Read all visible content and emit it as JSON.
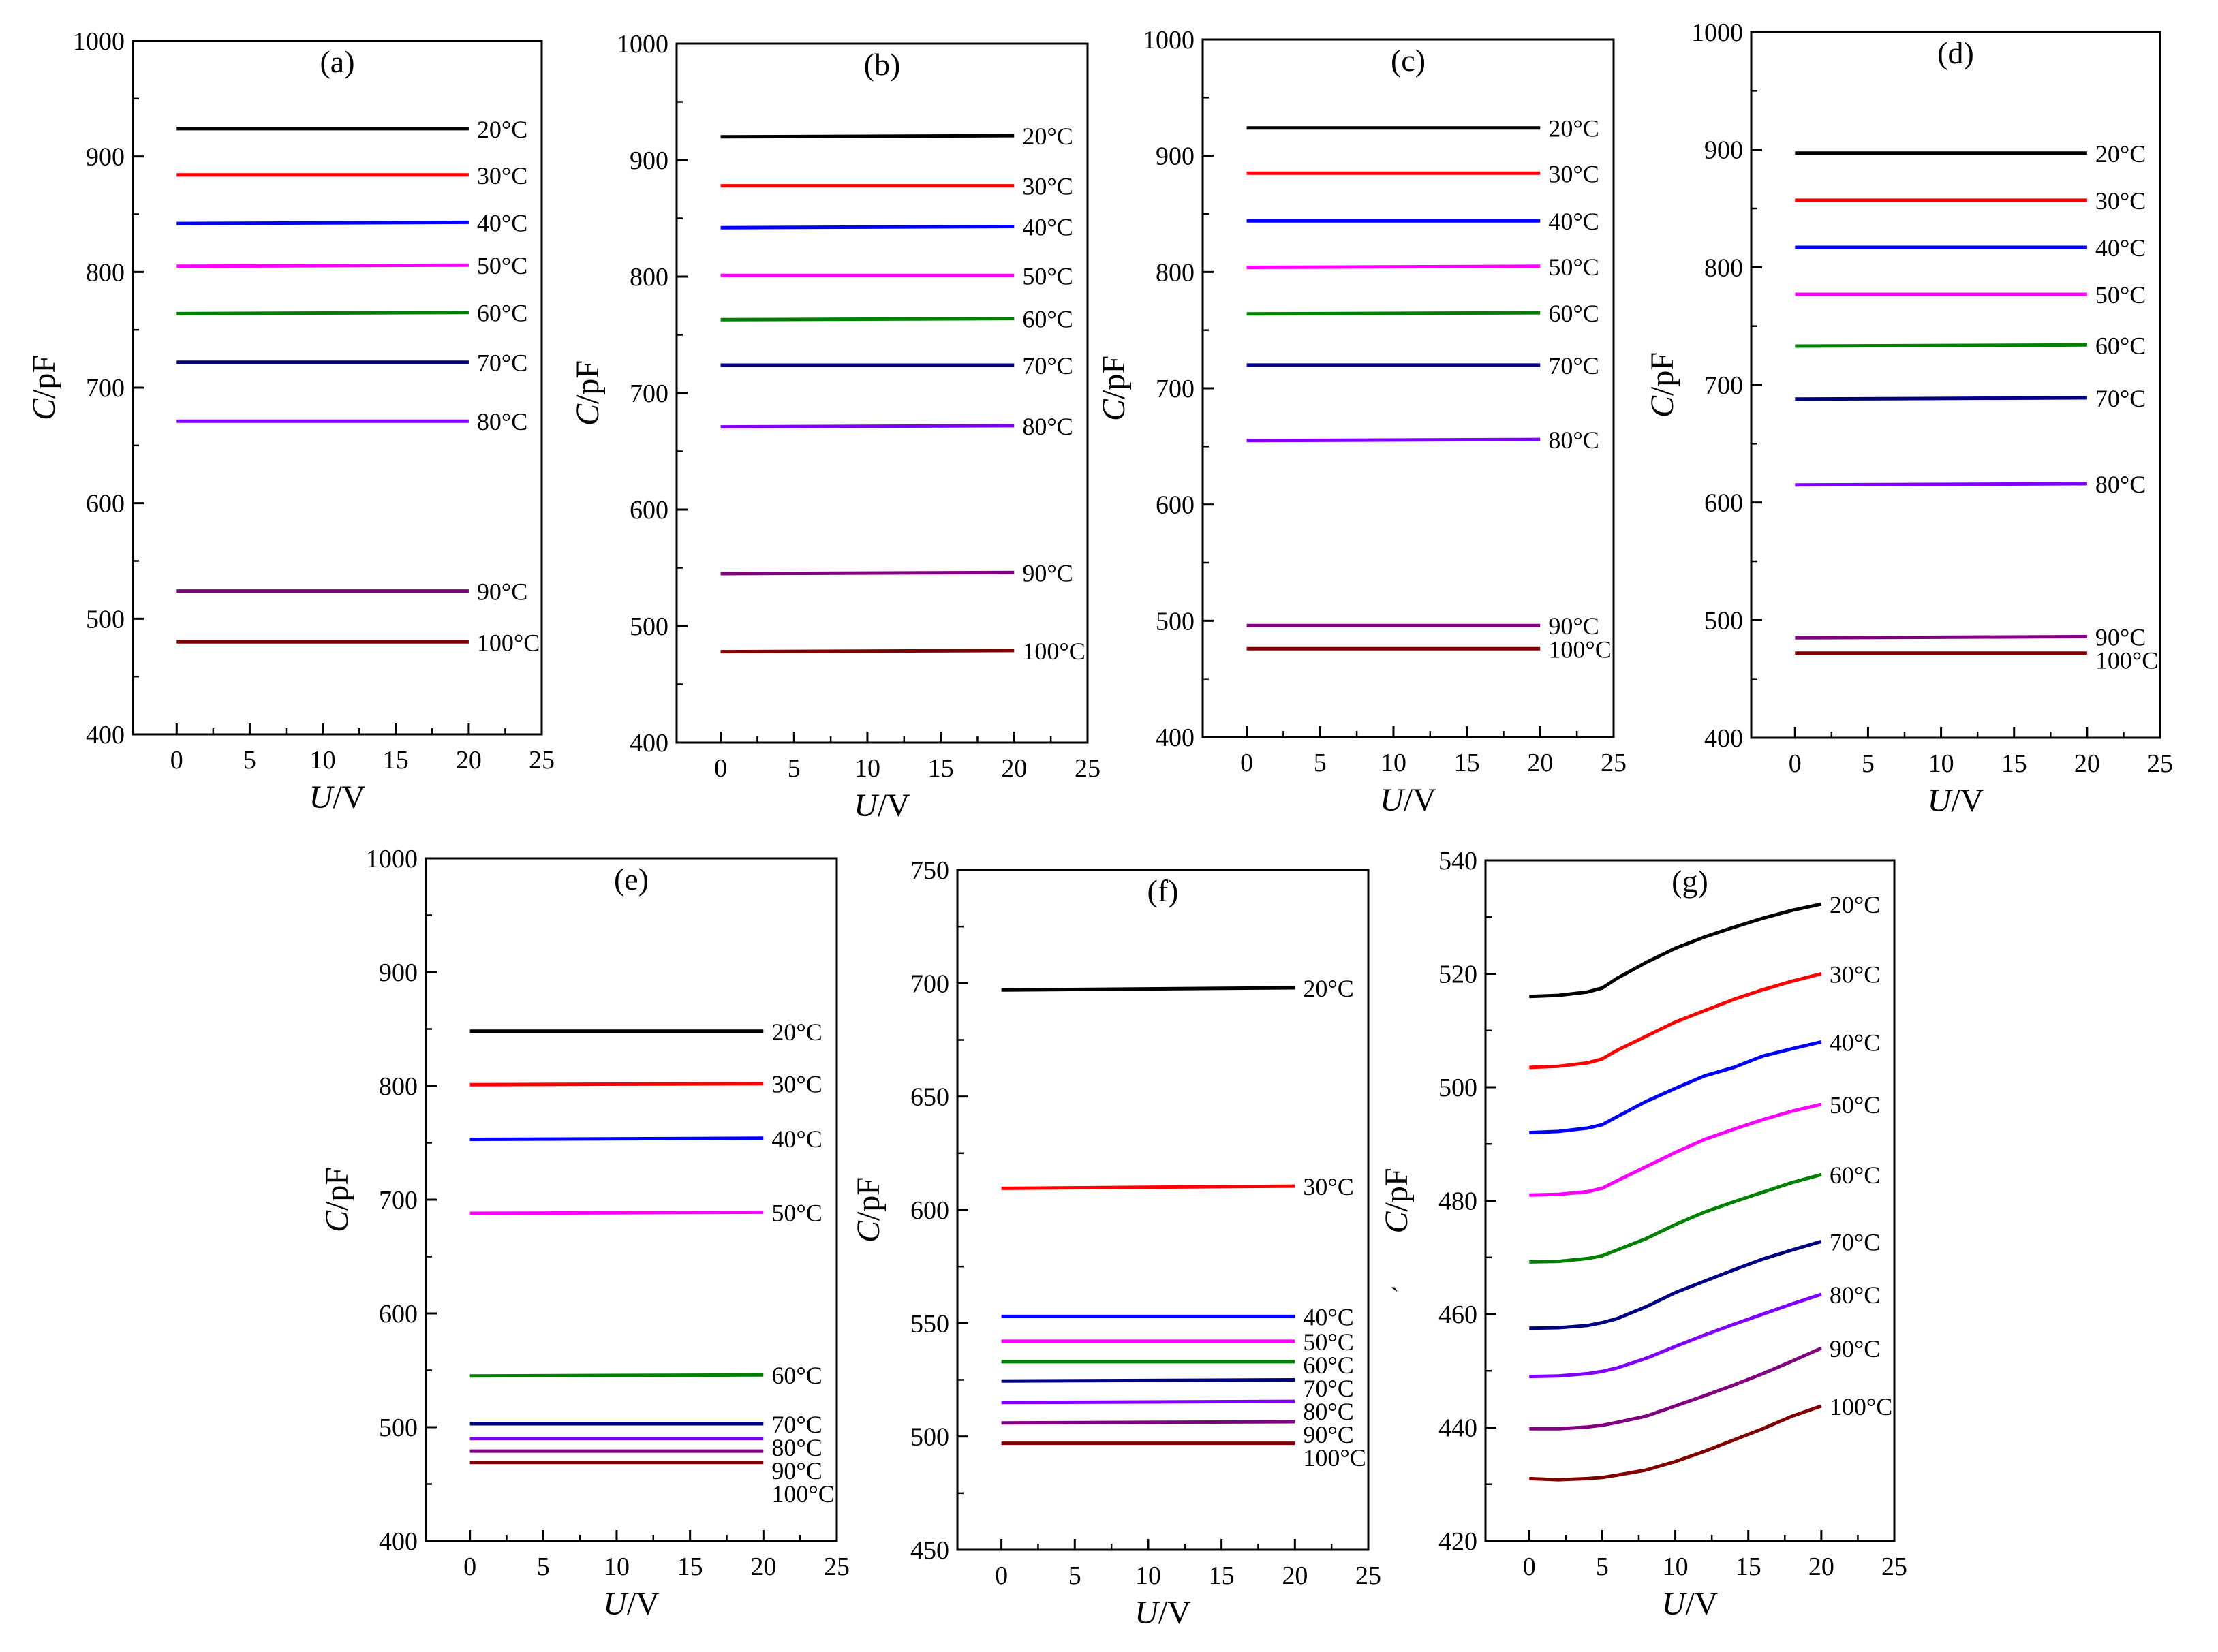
{
  "chart_data": [
    {
      "type": "line",
      "panel_label": "(a)",
      "xlabel_italic": "U",
      "xlabel_unit": "/V",
      "ylabel_italic": "C",
      "ylabel_unit": "/pF",
      "xlim": [
        -3,
        25
      ],
      "ylim": [
        400,
        1000
      ],
      "xticks": [
        0,
        5,
        10,
        15,
        20,
        25
      ],
      "yticks": [
        400,
        500,
        600,
        700,
        800,
        900,
        1000
      ],
      "series": [
        {
          "name": "20°C",
          "color": "#000000",
          "x": [
            0,
            20
          ],
          "y": [
            924,
            924
          ]
        },
        {
          "name": "30°C",
          "color": "#ff0000",
          "x": [
            0,
            20
          ],
          "y": [
            884,
            884
          ]
        },
        {
          "name": "40°C",
          "color": "#0000ff",
          "x": [
            0,
            20
          ],
          "y": [
            842,
            843
          ]
        },
        {
          "name": "50°C",
          "color": "#ff00ff",
          "x": [
            0,
            20
          ],
          "y": [
            805,
            806
          ]
        },
        {
          "name": "60°C",
          "color": "#008000",
          "x": [
            0,
            20
          ],
          "y": [
            764,
            765
          ]
        },
        {
          "name": "70°C",
          "color": "#000080",
          "x": [
            0,
            20
          ],
          "y": [
            722,
            722
          ]
        },
        {
          "name": "80°C",
          "color": "#8000ff",
          "x": [
            0,
            20
          ],
          "y": [
            671,
            671
          ]
        },
        {
          "name": "90°C",
          "color": "#800080",
          "x": [
            0,
            20
          ],
          "y": [
            524,
            524
          ]
        },
        {
          "name": "100°C",
          "color": "#800000",
          "x": [
            0,
            20
          ],
          "y": [
            480,
            480
          ]
        }
      ]
    },
    {
      "type": "line",
      "panel_label": "(b)",
      "xlabel_italic": "U",
      "xlabel_unit": "/V",
      "ylabel_italic": "C",
      "ylabel_unit": "/pF",
      "xlim": [
        -3,
        25
      ],
      "ylim": [
        400,
        1000
      ],
      "xticks": [
        0,
        5,
        10,
        15,
        20,
        25
      ],
      "yticks": [
        400,
        500,
        600,
        700,
        800,
        900,
        1000
      ],
      "series": [
        {
          "name": "20°C",
          "color": "#000000",
          "x": [
            0,
            20
          ],
          "y": [
            920,
            921
          ]
        },
        {
          "name": "30°C",
          "color": "#ff0000",
          "x": [
            0,
            20
          ],
          "y": [
            878,
            878
          ]
        },
        {
          "name": "40°C",
          "color": "#0000ff",
          "x": [
            0,
            20
          ],
          "y": [
            842,
            843
          ]
        },
        {
          "name": "50°C",
          "color": "#ff00ff",
          "x": [
            0,
            20
          ],
          "y": [
            801,
            801
          ]
        },
        {
          "name": "60°C",
          "color": "#008000",
          "x": [
            0,
            20
          ],
          "y": [
            763,
            764
          ]
        },
        {
          "name": "70°C",
          "color": "#000080",
          "x": [
            0,
            20
          ],
          "y": [
            724,
            724
          ]
        },
        {
          "name": "80°C",
          "color": "#8000ff",
          "x": [
            0,
            20
          ],
          "y": [
            671,
            672
          ]
        },
        {
          "name": "90°C",
          "color": "#800080",
          "x": [
            0,
            20
          ],
          "y": [
            545,
            546
          ]
        },
        {
          "name": "100°C",
          "color": "#800000",
          "x": [
            0,
            20
          ],
          "y": [
            478,
            479
          ]
        }
      ]
    },
    {
      "type": "line",
      "panel_label": "(c)",
      "xlabel_italic": "U",
      "xlabel_unit": "/V",
      "ylabel_italic": "C",
      "ylabel_unit": "/pF",
      "xlim": [
        -3,
        25
      ],
      "ylim": [
        400,
        1000
      ],
      "xticks": [
        0,
        5,
        10,
        15,
        20,
        25
      ],
      "yticks": [
        400,
        500,
        600,
        700,
        800,
        900,
        1000
      ],
      "series": [
        {
          "name": "20°C",
          "color": "#000000",
          "x": [
            0,
            20
          ],
          "y": [
            924,
            924
          ]
        },
        {
          "name": "30°C",
          "color": "#ff0000",
          "x": [
            0,
            20
          ],
          "y": [
            885,
            885
          ]
        },
        {
          "name": "40°C",
          "color": "#0000ff",
          "x": [
            0,
            20
          ],
          "y": [
            844,
            844
          ]
        },
        {
          "name": "50°C",
          "color": "#ff00ff",
          "x": [
            0,
            20
          ],
          "y": [
            804,
            805
          ]
        },
        {
          "name": "60°C",
          "color": "#008000",
          "x": [
            0,
            20
          ],
          "y": [
            764,
            765
          ]
        },
        {
          "name": "70°C",
          "color": "#000080",
          "x": [
            0,
            20
          ],
          "y": [
            720,
            720
          ]
        },
        {
          "name": "80°C",
          "color": "#8000ff",
          "x": [
            0,
            20
          ],
          "y": [
            655,
            656
          ]
        },
        {
          "name": "90°C",
          "color": "#800080",
          "x": [
            0,
            20
          ],
          "y": [
            496,
            496
          ]
        },
        {
          "name": "100°C",
          "color": "#800000",
          "x": [
            0,
            20
          ],
          "y": [
            476,
            476
          ]
        }
      ]
    },
    {
      "type": "line",
      "panel_label": "(d)",
      "xlabel_italic": "U",
      "xlabel_unit": "/V",
      "ylabel_italic": "C",
      "ylabel_unit": "/pF",
      "xlim": [
        -3,
        25
      ],
      "ylim": [
        400,
        1000
      ],
      "xticks": [
        0,
        5,
        10,
        15,
        20,
        25
      ],
      "yticks": [
        400,
        500,
        600,
        700,
        800,
        900,
        1000
      ],
      "series": [
        {
          "name": "20°C",
          "color": "#000000",
          "x": [
            0,
            20
          ],
          "y": [
            897,
            897
          ]
        },
        {
          "name": "30°C",
          "color": "#ff0000",
          "x": [
            0,
            20
          ],
          "y": [
            857,
            857
          ]
        },
        {
          "name": "40°C",
          "color": "#0000ff",
          "x": [
            0,
            20
          ],
          "y": [
            817,
            817
          ]
        },
        {
          "name": "50°C",
          "color": "#ff00ff",
          "x": [
            0,
            20
          ],
          "y": [
            777,
            777
          ]
        },
        {
          "name": "60°C",
          "color": "#008000",
          "x": [
            0,
            20
          ],
          "y": [
            733,
            734
          ]
        },
        {
          "name": "70°C",
          "color": "#000080",
          "x": [
            0,
            20
          ],
          "y": [
            688,
            689
          ]
        },
        {
          "name": "80°C",
          "color": "#8000ff",
          "x": [
            0,
            20
          ],
          "y": [
            615,
            616
          ]
        },
        {
          "name": "90°C",
          "color": "#800080",
          "x": [
            0,
            20
          ],
          "y": [
            485,
            486
          ]
        },
        {
          "name": "100°C",
          "color": "#800000",
          "x": [
            0,
            20
          ],
          "y": [
            472,
            472
          ]
        }
      ]
    },
    {
      "type": "line",
      "panel_label": "(e)",
      "xlabel_italic": "U",
      "xlabel_unit": "/V",
      "ylabel_italic": "C",
      "ylabel_unit": "/pF",
      "xlim": [
        -3,
        25
      ],
      "ylim": [
        400,
        1000
      ],
      "xticks": [
        0,
        5,
        10,
        15,
        20,
        25
      ],
      "yticks": [
        400,
        500,
        600,
        700,
        800,
        900,
        1000
      ],
      "series": [
        {
          "name": "20°C",
          "color": "#000000",
          "x": [
            0,
            20
          ],
          "y": [
            848,
            848
          ]
        },
        {
          "name": "30°C",
          "color": "#ff0000",
          "x": [
            0,
            20
          ],
          "y": [
            801,
            802
          ]
        },
        {
          "name": "40°C",
          "color": "#0000ff",
          "x": [
            0,
            20
          ],
          "y": [
            753,
            754
          ]
        },
        {
          "name": "50°C",
          "color": "#ff00ff",
          "x": [
            0,
            20
          ],
          "y": [
            688,
            689
          ]
        },
        {
          "name": "60°C",
          "color": "#008000",
          "x": [
            0,
            20
          ],
          "y": [
            545,
            546
          ]
        },
        {
          "name": "70°C",
          "color": "#000080",
          "x": [
            0,
            20
          ],
          "y": [
            503,
            503
          ]
        },
        {
          "name": "80°C",
          "color": "#8000ff",
          "x": [
            0,
            20
          ],
          "y": [
            490,
            490
          ]
        },
        {
          "name": "90°C",
          "color": "#800080",
          "x": [
            0,
            20
          ],
          "y": [
            479,
            479
          ]
        },
        {
          "name": "100°C",
          "color": "#800000",
          "x": [
            0,
            20
          ],
          "y": [
            469,
            469
          ]
        }
      ]
    },
    {
      "type": "line",
      "panel_label": "(f)",
      "xlabel_italic": "U",
      "xlabel_unit": "/V",
      "ylabel_italic": "C",
      "ylabel_unit": "/pF",
      "xlim": [
        -3,
        25
      ],
      "ylim": [
        450,
        750
      ],
      "xticks": [
        0,
        5,
        10,
        15,
        20,
        25
      ],
      "yticks": [
        450,
        500,
        550,
        600,
        650,
        700,
        750
      ],
      "series": [
        {
          "name": "20°C",
          "color": "#000000",
          "x": [
            0,
            20
          ],
          "y": [
            697,
            698
          ]
        },
        {
          "name": "30°C",
          "color": "#ff0000",
          "x": [
            0,
            20
          ],
          "y": [
            609.5,
            610.5
          ]
        },
        {
          "name": "40°C",
          "color": "#0000ff",
          "x": [
            0,
            20
          ],
          "y": [
            553,
            553
          ]
        },
        {
          "name": "50°C",
          "color": "#ff00ff",
          "x": [
            0,
            20
          ],
          "y": [
            542,
            542
          ]
        },
        {
          "name": "60°C",
          "color": "#008000",
          "x": [
            0,
            20
          ],
          "y": [
            533,
            533
          ]
        },
        {
          "name": "70°C",
          "color": "#000080",
          "x": [
            0,
            20
          ],
          "y": [
            524.5,
            525
          ]
        },
        {
          "name": "80°C",
          "color": "#8000ff",
          "x": [
            0,
            20
          ],
          "y": [
            515,
            515.5
          ]
        },
        {
          "name": "90°C",
          "color": "#800080",
          "x": [
            0,
            20
          ],
          "y": [
            506,
            506.5
          ]
        },
        {
          "name": "100°C",
          "color": "#800000",
          "x": [
            0,
            20
          ],
          "y": [
            497,
            497
          ]
        }
      ]
    },
    {
      "type": "line",
      "panel_label": "(g)",
      "xlabel_italic": "U",
      "xlabel_unit": "/V",
      "ylabel_italic": "C",
      "ylabel_unit": "/pF",
      "ylabel_prefix": "`",
      "xlim": [
        -3,
        25
      ],
      "ylim": [
        420,
        540
      ],
      "xticks": [
        0,
        5,
        10,
        15,
        20,
        25
      ],
      "yticks": [
        420,
        440,
        460,
        480,
        500,
        520,
        540
      ],
      "series": [
        {
          "name": "20°C",
          "color": "#000000",
          "x": [
            0,
            2,
            4,
            5,
            6,
            8,
            10,
            12,
            14,
            16,
            18,
            20
          ],
          "y": [
            516,
            516.2,
            516.8,
            517.5,
            519.2,
            522,
            524.5,
            526.5,
            528.2,
            529.8,
            531.2,
            532.3
          ]
        },
        {
          "name": "30°C",
          "color": "#ff0000",
          "x": [
            0,
            2,
            4,
            5,
            6,
            8,
            10,
            12,
            14,
            16,
            18,
            20
          ],
          "y": [
            503.5,
            503.7,
            504.3,
            505,
            506.5,
            509,
            511.5,
            513.5,
            515.5,
            517.2,
            518.7,
            520
          ]
        },
        {
          "name": "40°C",
          "color": "#0000ff",
          "x": [
            0,
            2,
            4,
            5,
            6,
            8,
            10,
            12,
            14,
            16,
            18,
            20
          ],
          "y": [
            492,
            492.2,
            492.8,
            493.4,
            494.8,
            497.5,
            499.8,
            502,
            503.5,
            505.5,
            506.8,
            508
          ]
        },
        {
          "name": "50°C",
          "color": "#ff00ff",
          "x": [
            0,
            2,
            4,
            5,
            6,
            8,
            10,
            12,
            14,
            16,
            18,
            20
          ],
          "y": [
            481,
            481.1,
            481.6,
            482.2,
            483.5,
            486,
            488.5,
            490.8,
            492.6,
            494.3,
            495.8,
            497
          ]
        },
        {
          "name": "60°C",
          "color": "#008000",
          "x": [
            0,
            2,
            4,
            5,
            6,
            8,
            10,
            12,
            14,
            16,
            18,
            20
          ],
          "y": [
            469.2,
            469.3,
            469.8,
            470.3,
            471.3,
            473.3,
            475.8,
            478,
            479.8,
            481.5,
            483.2,
            484.6
          ]
        },
        {
          "name": "70°C",
          "color": "#000080",
          "x": [
            0,
            2,
            4,
            5,
            6,
            8,
            10,
            12,
            14,
            16,
            18,
            20
          ],
          "y": [
            457.5,
            457.6,
            458,
            458.5,
            459.2,
            461.3,
            463.8,
            465.8,
            467.8,
            469.7,
            471.3,
            472.8
          ]
        },
        {
          "name": "80°C",
          "color": "#8000ff",
          "x": [
            0,
            2,
            4,
            5,
            6,
            8,
            10,
            12,
            14,
            16,
            18,
            20
          ],
          "y": [
            449,
            449.1,
            449.5,
            449.9,
            450.5,
            452.2,
            454.3,
            456.3,
            458.2,
            460,
            461.8,
            463.5
          ]
        },
        {
          "name": "90°C",
          "color": "#800080",
          "x": [
            0,
            2,
            4,
            5,
            6,
            8,
            10,
            12,
            14,
            16,
            18,
            20
          ],
          "y": [
            439.8,
            439.8,
            440.1,
            440.4,
            440.9,
            442,
            443.8,
            445.6,
            447.5,
            449.5,
            451.7,
            454
          ]
        },
        {
          "name": "100°C",
          "color": "#800000",
          "x": [
            0,
            2,
            4,
            5,
            6,
            8,
            10,
            12,
            14,
            16,
            18,
            20
          ],
          "y": [
            431,
            430.8,
            431,
            431.2,
            431.6,
            432.5,
            434,
            435.8,
            437.8,
            439.8,
            442,
            443.8
          ]
        }
      ]
    }
  ]
}
